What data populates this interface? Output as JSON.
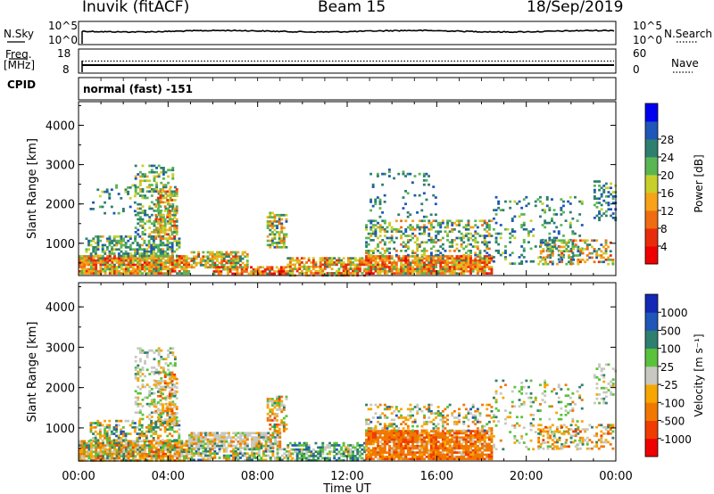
{
  "header": {
    "station": "Inuvik (fitACF)",
    "beam": "Beam 15",
    "date": "18/Sep/2019"
  },
  "aux_panels": {
    "nsky_label": "N.Sky",
    "nsky_ticks": [
      "10^5",
      "10^0"
    ],
    "nsearch_label": "N.Search",
    "nsearch_ticks": [
      "10^5",
      "10^0"
    ],
    "freq_label": "Freq.",
    "freq_unit": "[MHz]",
    "freq_ticks": [
      "18",
      "8"
    ],
    "nave_label": "Nave",
    "nave_ticks": [
      "60",
      "0"
    ],
    "cpid_label": "CPID",
    "cpid_value": "normal (fast) -151"
  },
  "chart_data": [
    {
      "type": "heatmap",
      "panel": "power",
      "ylabel": "Slant Range [km]",
      "ylim": [
        180,
        4600
      ],
      "yticks": [
        "1000",
        "2000",
        "3000",
        "4000"
      ],
      "colorbar_label": "Power [dB]",
      "colorbar_ticks": [
        "4",
        "8",
        "12",
        "16",
        "20",
        "24",
        "28"
      ],
      "colorscale": [
        "#0000ee",
        "#1f56b8",
        "#2f7f6f",
        "#59b653",
        "#c9cf2a",
        "#f7a219",
        "#f06c12",
        "#e82c0b",
        "#ee0000"
      ]
    },
    {
      "type": "heatmap",
      "panel": "velocity",
      "ylabel": "Slant Range [km]",
      "ylim": [
        180,
        4600
      ],
      "yticks": [
        "1000",
        "2000",
        "3000",
        "4000"
      ],
      "colorbar_label": "Velocity [m s⁻¹]",
      "colorbar_ticks": [
        "1000",
        "500",
        "100",
        "25",
        "-25",
        "-100",
        "-500",
        "-1000"
      ],
      "colorscale": [
        "#1428b4",
        "#1f56b8",
        "#2f7f6f",
        "#59c23a",
        "#c8c8c0",
        "#f7a600",
        "#f07800",
        "#f03c00",
        "#ee0000"
      ]
    }
  ],
  "time_axis": {
    "label": "Time UT",
    "ticks": [
      "00:00",
      "04:00",
      "08:00",
      "12:00",
      "16:00",
      "20:00",
      "00:00"
    ]
  }
}
